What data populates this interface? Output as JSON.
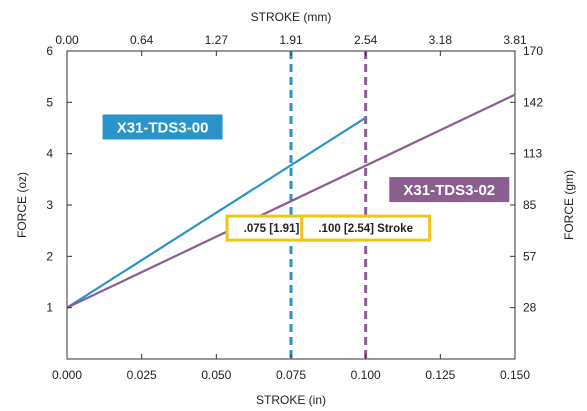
{
  "chart_data": {
    "type": "line",
    "xlabel": "STROKE (in)",
    "x2label": "STROKE (mm)",
    "ylabel": "FORCE (oz)",
    "y2label": "FORCE (gm)",
    "xlim": [
      0,
      0.15
    ],
    "ylim": [
      0,
      6
    ],
    "x_ticks": [
      0,
      0.025,
      0.05,
      0.075,
      0.1,
      0.125,
      0.15
    ],
    "x_tick_labels": [
      "0.000",
      "0.025",
      "0.050",
      "0.075",
      "0.100",
      "0.125",
      "0.150"
    ],
    "x2_ticks": [
      0,
      0.025,
      0.05,
      0.075,
      0.1,
      0.125,
      0.15
    ],
    "x2_tick_labels": [
      "0.00",
      "0.64",
      "1.27",
      "1.91",
      "2.54",
      "3.18",
      "3.81"
    ],
    "y_ticks": [
      1,
      2,
      3,
      4,
      5,
      6
    ],
    "y_tick_labels": [
      "1",
      "2",
      "3",
      "4",
      "5",
      "6"
    ],
    "y2_ticks": [
      1,
      2,
      3,
      4,
      5,
      6
    ],
    "y2_tick_labels": [
      "28",
      "57",
      "85",
      "113",
      "142",
      "170"
    ],
    "grid": false,
    "series": [
      {
        "name": "X31-TDS3-00",
        "color": "#2a93c9",
        "x": [
          0,
          0.1
        ],
        "y": [
          1,
          4.7
        ]
      },
      {
        "name": "X31-TDS3-02",
        "color": "#8b5e8f",
        "x": [
          0,
          0.15
        ],
        "y": [
          1,
          5.15
        ]
      }
    ],
    "series_label_positions": [
      {
        "x": 0.032,
        "y": 4.52
      },
      {
        "x": 0.128,
        "y": 3.3
      }
    ],
    "reference_lines": [
      {
        "x": 0.075,
        "color": "#2a93c9",
        "label": ".075 [1.91] Stroke",
        "label_y": 2.55
      },
      {
        "x": 0.1,
        "color": "#8b5e8f",
        "label": ".100 [2.54] Stroke",
        "label_y": 2.55
      }
    ],
    "label_box_color": "#f0c419"
  }
}
